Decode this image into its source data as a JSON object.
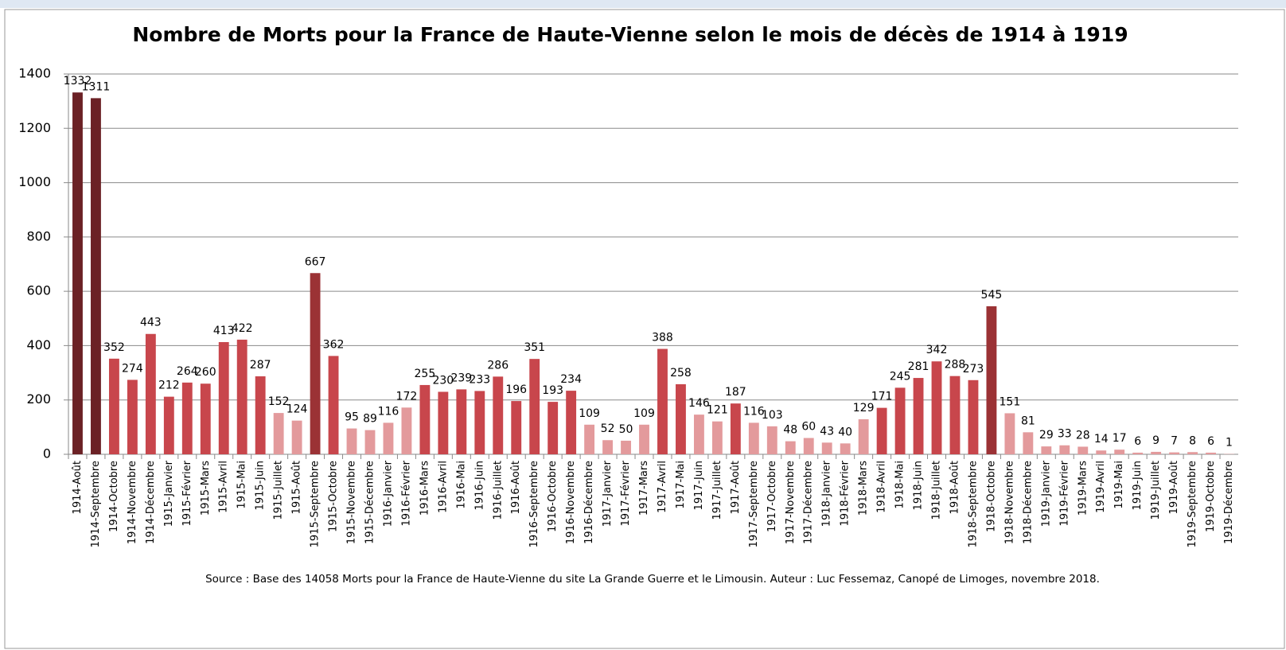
{
  "chart_data": {
    "type": "bar",
    "title": "Nombre de Morts pour la France de Haute-Vienne selon le mois de décès de 1914 à 1919",
    "source": "Source : Base des 14058 Morts pour la France de Haute-Vienne du site La Grande Guerre et le Limousin. Auteur : Luc Fessemaz, Canopé de Limoges, novembre 2018.",
    "categories": [
      "1914-Août",
      "1914-Septembre",
      "1914-Octobre",
      "1914-Novembre",
      "1914-Décembre",
      "1915-Janvier",
      "1915-Février",
      "1915-Mars",
      "1915-Avril",
      "1915-Mai",
      "1915-Juin",
      "1915-Juillet",
      "1915-Août",
      "1915-Septembre",
      "1915-Octobre",
      "1915-Novembre",
      "1915-Décembre",
      "1916-Janvier",
      "1916-Février",
      "1916-Mars",
      "1916-Avril",
      "1916-Mai",
      "1916-Juin",
      "1916-Juillet",
      "1916-Août",
      "1916-Septembre",
      "1916-Octobre",
      "1916-Novembre",
      "1916-Décembre",
      "1917-Janvier",
      "1917-Février",
      "1917-Mars",
      "1917-Avril",
      "1917-Mai",
      "1917-Juin",
      "1917-Juillet",
      "1917-Août",
      "1917-Septembre",
      "1917-Octobre",
      "1917-Novembre",
      "1917-Décembre",
      "1918-Janvier",
      "1918-Février",
      "1918-Mars",
      "1918-Avril",
      "1918-Mai",
      "1918-Juin",
      "1918-Juillet",
      "1918-Août",
      "1918-Septembre",
      "1918-Octobre",
      "1918-Novembre",
      "1918-Décembre",
      "1919-Janvier",
      "1919-Février",
      "1919-Mars",
      "1919-Avril",
      "1919-Mai",
      "1919-Juin",
      "1919-Juillet",
      "1919-Août",
      "1919-Septembre",
      "1919-Octobre",
      "1919-Décembre"
    ],
    "values": [
      1332,
      1311,
      352,
      274,
      443,
      212,
      264,
      260,
      413,
      422,
      287,
      152,
      124,
      667,
      362,
      95,
      89,
      116,
      172,
      255,
      230,
      239,
      233,
      286,
      196,
      351,
      193,
      234,
      109,
      52,
      50,
      109,
      388,
      258,
      146,
      121,
      187,
      116,
      103,
      48,
      60,
      43,
      40,
      129,
      171,
      245,
      281,
      342,
      288,
      273,
      545,
      151,
      81,
      29,
      33,
      28,
      14,
      17,
      6,
      9,
      7,
      8,
      6,
      1
    ],
    "colors": [
      "#6b2125",
      "#6b2125",
      "#c8464c",
      "#c8464c",
      "#c8464c",
      "#c8464c",
      "#c8464c",
      "#c8464c",
      "#c8464c",
      "#c8464c",
      "#c8464c",
      "#e39a9c",
      "#e39a9c",
      "#9b3235",
      "#c8464c",
      "#e39a9c",
      "#e39a9c",
      "#e39a9c",
      "#e39a9c",
      "#c8464c",
      "#c8464c",
      "#c8464c",
      "#c8464c",
      "#c8464c",
      "#c8464c",
      "#c8464c",
      "#c8464c",
      "#c8464c",
      "#e39a9c",
      "#e39a9c",
      "#e39a9c",
      "#e39a9c",
      "#c8464c",
      "#c8464c",
      "#e39a9c",
      "#e39a9c",
      "#c8464c",
      "#e39a9c",
      "#e39a9c",
      "#e39a9c",
      "#e39a9c",
      "#e39a9c",
      "#e39a9c",
      "#e39a9c",
      "#c8464c",
      "#c8464c",
      "#c8464c",
      "#c8464c",
      "#c8464c",
      "#c8464c",
      "#9b3235",
      "#e39a9c",
      "#e39a9c",
      "#e39a9c",
      "#e39a9c",
      "#e39a9c",
      "#e39a9c",
      "#e39a9c",
      "#e39a9c",
      "#e39a9c",
      "#e39a9c",
      "#e39a9c",
      "#e39a9c",
      "#e39a9c"
    ],
    "ylim": [
      0,
      1400
    ],
    "yticks": [
      0,
      200,
      400,
      600,
      800,
      1000,
      1200,
      1400
    ],
    "grid": true
  }
}
